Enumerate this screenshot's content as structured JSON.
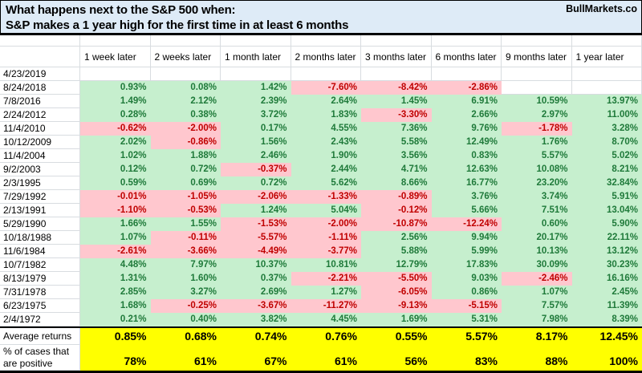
{
  "header": {
    "title_line1": "What happens next to the S&P 500 when:",
    "title_line2": "S&P makes a 1 year high for the first time in at least 6 months",
    "brand": "BullMarkets.co"
  },
  "colors": {
    "header_bg": "#DEEBF7",
    "grid_line": "#D8DCE0",
    "positive_bg": "#C6EFCE",
    "positive_text": "#1F7A3A",
    "negative_bg": "#FFC7CE",
    "negative_text": "#C00000",
    "summary_bg": "#FFFF00"
  },
  "chart_data": {
    "type": "table",
    "title": "What happens next to the S&P 500 when: S&P makes a 1 year high for the first time in at least 6 months",
    "column_headers": [
      "1 week later",
      "2 weeks later",
      "1 month later",
      "2 months later",
      "3 months later",
      "6 months later",
      "9 months later",
      "1 year later"
    ],
    "row_header_label": "",
    "rows": [
      {
        "date": "4/23/2019",
        "values": [
          null,
          null,
          null,
          null,
          null,
          null,
          null,
          null
        ]
      },
      {
        "date": "8/24/2018",
        "values": [
          "0.93%",
          "0.08%",
          "1.42%",
          "-7.60%",
          "-8.42%",
          "-2.86%",
          null,
          null
        ]
      },
      {
        "date": "7/8/2016",
        "values": [
          "1.49%",
          "2.12%",
          "2.39%",
          "2.64%",
          "1.45%",
          "6.91%",
          "10.59%",
          "13.97%"
        ]
      },
      {
        "date": "2/24/2012",
        "values": [
          "0.28%",
          "0.38%",
          "3.72%",
          "1.83%",
          "-3.30%",
          "2.66%",
          "2.97%",
          "11.00%"
        ]
      },
      {
        "date": "11/4/2010",
        "values": [
          "-0.62%",
          "-2.00%",
          "0.17%",
          "4.55%",
          "7.36%",
          "9.76%",
          "-1.78%",
          "3.28%"
        ]
      },
      {
        "date": "10/12/2009",
        "values": [
          "2.02%",
          "-0.86%",
          "1.56%",
          "2.43%",
          "5.58%",
          "12.49%",
          "1.76%",
          "8.70%"
        ]
      },
      {
        "date": "11/4/2004",
        "values": [
          "1.02%",
          "1.88%",
          "2.46%",
          "1.90%",
          "3.56%",
          "0.83%",
          "5.57%",
          "5.02%"
        ]
      },
      {
        "date": "9/2/2003",
        "values": [
          "0.12%",
          "0.72%",
          "-0.37%",
          "2.44%",
          "4.71%",
          "12.63%",
          "10.08%",
          "8.21%"
        ]
      },
      {
        "date": "2/3/1995",
        "values": [
          "0.59%",
          "0.69%",
          "0.72%",
          "5.62%",
          "8.66%",
          "16.77%",
          "23.20%",
          "32.84%"
        ]
      },
      {
        "date": "7/29/1992",
        "values": [
          "-0.01%",
          "-1.05%",
          "-2.06%",
          "-1.33%",
          "-0.89%",
          "3.76%",
          "3.74%",
          "5.91%"
        ]
      },
      {
        "date": "2/13/1991",
        "values": [
          "-1.10%",
          "-0.53%",
          "1.24%",
          "5.04%",
          "-0.12%",
          "5.66%",
          "7.51%",
          "13.04%"
        ]
      },
      {
        "date": "5/29/1990",
        "values": [
          "1.66%",
          "1.55%",
          "-1.53%",
          "-2.00%",
          "-10.87%",
          "-12.24%",
          "0.60%",
          "5.90%"
        ]
      },
      {
        "date": "10/18/1988",
        "values": [
          "1.07%",
          "-0.11%",
          "-5.57%",
          "-1.11%",
          "2.56%",
          "9.94%",
          "20.17%",
          "22.11%"
        ]
      },
      {
        "date": "11/6/1984",
        "values": [
          "-2.61%",
          "-3.66%",
          "-4.49%",
          "-3.77%",
          "5.88%",
          "5.99%",
          "10.13%",
          "13.12%"
        ]
      },
      {
        "date": "10/7/1982",
        "values": [
          "4.48%",
          "7.97%",
          "10.37%",
          "10.81%",
          "12.79%",
          "17.83%",
          "30.09%",
          "30.23%"
        ]
      },
      {
        "date": "8/13/1979",
        "values": [
          "1.31%",
          "1.60%",
          "0.37%",
          "-2.21%",
          "-5.50%",
          "9.03%",
          "-2.46%",
          "16.16%"
        ]
      },
      {
        "date": "7/31/1978",
        "values": [
          "2.85%",
          "3.27%",
          "2.69%",
          "1.27%",
          "-6.05%",
          "0.86%",
          "1.07%",
          "2.45%"
        ]
      },
      {
        "date": "6/23/1975",
        "values": [
          "1.68%",
          "-0.25%",
          "-3.67%",
          "-11.27%",
          "-9.13%",
          "-5.15%",
          "7.57%",
          "11.39%"
        ]
      },
      {
        "date": "2/4/1972",
        "values": [
          "0.21%",
          "0.40%",
          "3.82%",
          "4.45%",
          "1.69%",
          "5.31%",
          "7.98%",
          "8.39%"
        ]
      }
    ],
    "summary": {
      "average_label": "Average returns",
      "average_values": [
        "0.85%",
        "0.68%",
        "0.74%",
        "0.76%",
        "0.55%",
        "5.57%",
        "8.17%",
        "12.45%"
      ],
      "positive_label_line1": "% of cases that",
      "positive_label_line2": "are positive",
      "positive_values": [
        "78%",
        "61%",
        "67%",
        "61%",
        "56%",
        "83%",
        "88%",
        "100%"
      ]
    }
  }
}
